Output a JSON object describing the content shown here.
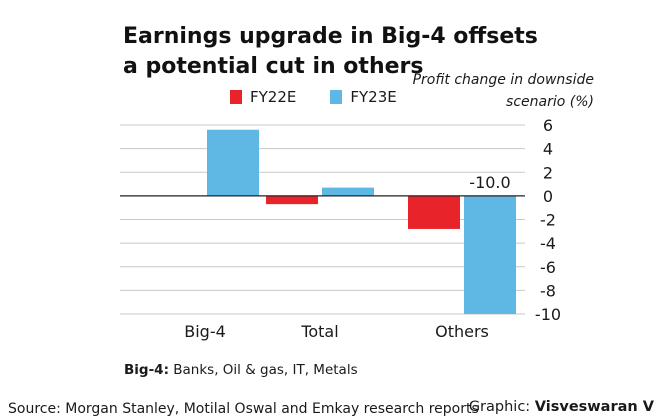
{
  "chart_data": {
    "type": "bar",
    "title": "Earnings upgrade in Big-4 offsets a potential cut in others",
    "ylabel": "Profit change in downside scenario (%)",
    "categories": [
      "Big-4",
      "Total",
      "Others"
    ],
    "series": [
      {
        "name": "FY22E",
        "color": "#e8242a",
        "values": [
          0,
          -0.7,
          -2.8
        ]
      },
      {
        "name": "FY23E",
        "color": "#5fb7e4",
        "values": [
          5.6,
          0.7,
          -10.0
        ]
      }
    ],
    "data_labels": [
      {
        "series": "FY23E",
        "category": "Others",
        "text": "-10.0"
      }
    ],
    "ylim": [
      -10,
      6
    ],
    "yticks": [
      6,
      4,
      2,
      0,
      -2,
      -4,
      -6,
      -8,
      -10
    ],
    "grid": true,
    "legend_position": "top"
  },
  "footnote": {
    "key": "Big-4:",
    "text": " Banks, Oil & gas, IT, Metals"
  },
  "source": "Source:  Morgan Stanley, Motilal Oswal and Emkay research reports",
  "credit": {
    "prefix": "Graphic: ",
    "name": "Visveswaran V"
  }
}
